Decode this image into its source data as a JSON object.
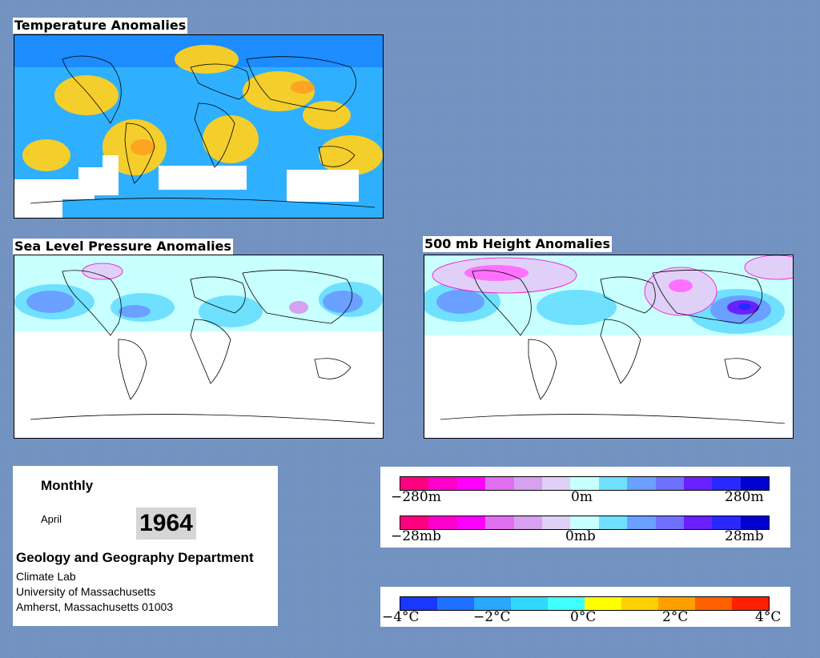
{
  "maps": {
    "temperature": {
      "title": "Temperature Anomalies"
    },
    "slp": {
      "title": "Sea Level Pressure Anomalies"
    },
    "height500": {
      "title": "500 mb Height Anomalies"
    }
  },
  "info": {
    "period": "Monthly",
    "month": "April",
    "year": "1964",
    "department": "Geology and Geography Department",
    "lab": "Climate Lab",
    "university": "University of Massachusetts",
    "address": "Amherst, Massachusetts 01003"
  },
  "legend_height": {
    "ticks": [
      "−280m",
      "0m",
      "280m"
    ],
    "colors": [
      "#ff0080",
      "#ff00cc",
      "#ff00ff",
      "#e070f0",
      "#d7a0f0",
      "#e0d0f8",
      "#c8ffff",
      "#70e0ff",
      "#6aa0ff",
      "#7070ff",
      "#6a20ff",
      "#2828ff",
      "#0000d0"
    ]
  },
  "legend_pressure": {
    "ticks": [
      "−28mb",
      "0mb",
      "28mb"
    ],
    "colors": [
      "#ff0080",
      "#ff00cc",
      "#ff00ff",
      "#e070f0",
      "#d7a0f0",
      "#e0d0f8",
      "#c8ffff",
      "#70e0ff",
      "#6aa0ff",
      "#7070ff",
      "#6a20ff",
      "#2828ff",
      "#0000d0"
    ]
  },
  "legend_temperature": {
    "ticks": [
      "−4°C",
      "−2°C",
      "0°C",
      "2°C",
      "4°C"
    ],
    "colors": [
      "#1838ff",
      "#2070ff",
      "#28a8ff",
      "#30d8ff",
      "#40ffff",
      "#ffff00",
      "#ffd000",
      "#ffa000",
      "#ff6000",
      "#ff2000"
    ]
  }
}
